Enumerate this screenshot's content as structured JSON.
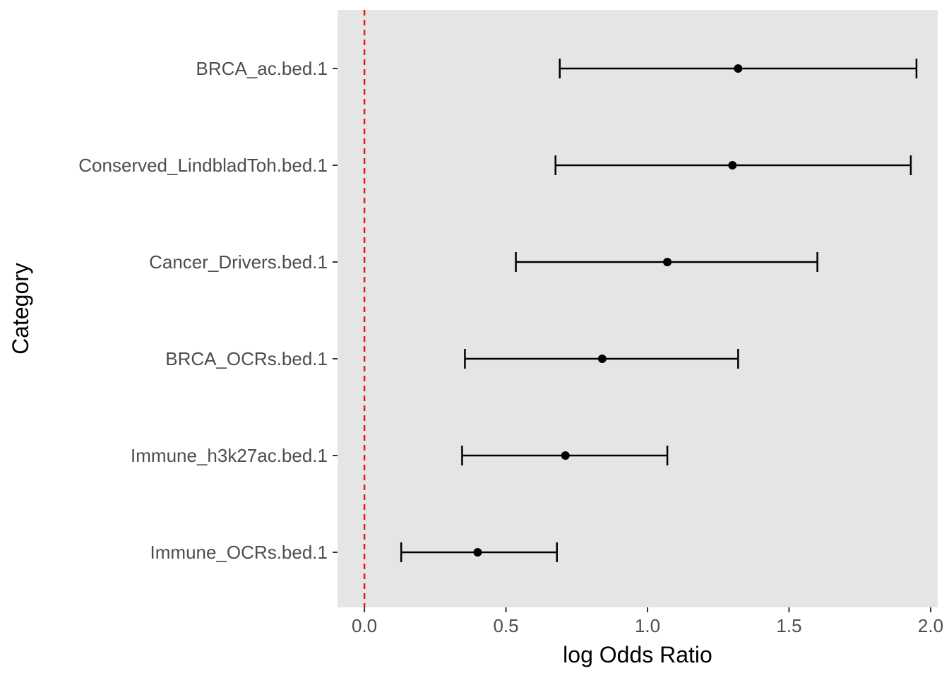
{
  "chart_data": {
    "type": "forest",
    "xlabel": "log Odds Ratio",
    "ylabel": "Category",
    "xlim": [
      -0.095,
      2.025
    ],
    "x_ticks": [
      "0.0",
      "0.5",
      "1.0",
      "1.5",
      "2.0"
    ],
    "x_tick_values": [
      0,
      0.5,
      1.0,
      1.5,
      2.0
    ],
    "grid": false,
    "panel_background": "#e5e5e5",
    "reference_line": {
      "x": 0,
      "color": "#e41a1c",
      "style": "dashed"
    },
    "point_color": "#000000",
    "categories": [
      "BRCA_ac.bed.1",
      "Conserved_LindbladToh.bed.1",
      "Cancer_Drivers.bed.1",
      "BRCA_OCRs.bed.1",
      "Immune_h3k27ac.bed.1",
      "Immune_OCRs.bed.1"
    ],
    "estimates": [
      1.32,
      1.3,
      1.07,
      0.84,
      0.71,
      0.4
    ],
    "lower": [
      0.69,
      0.675,
      0.535,
      0.355,
      0.345,
      0.13
    ],
    "upper": [
      1.95,
      1.93,
      1.6,
      1.32,
      1.07,
      0.68
    ]
  }
}
